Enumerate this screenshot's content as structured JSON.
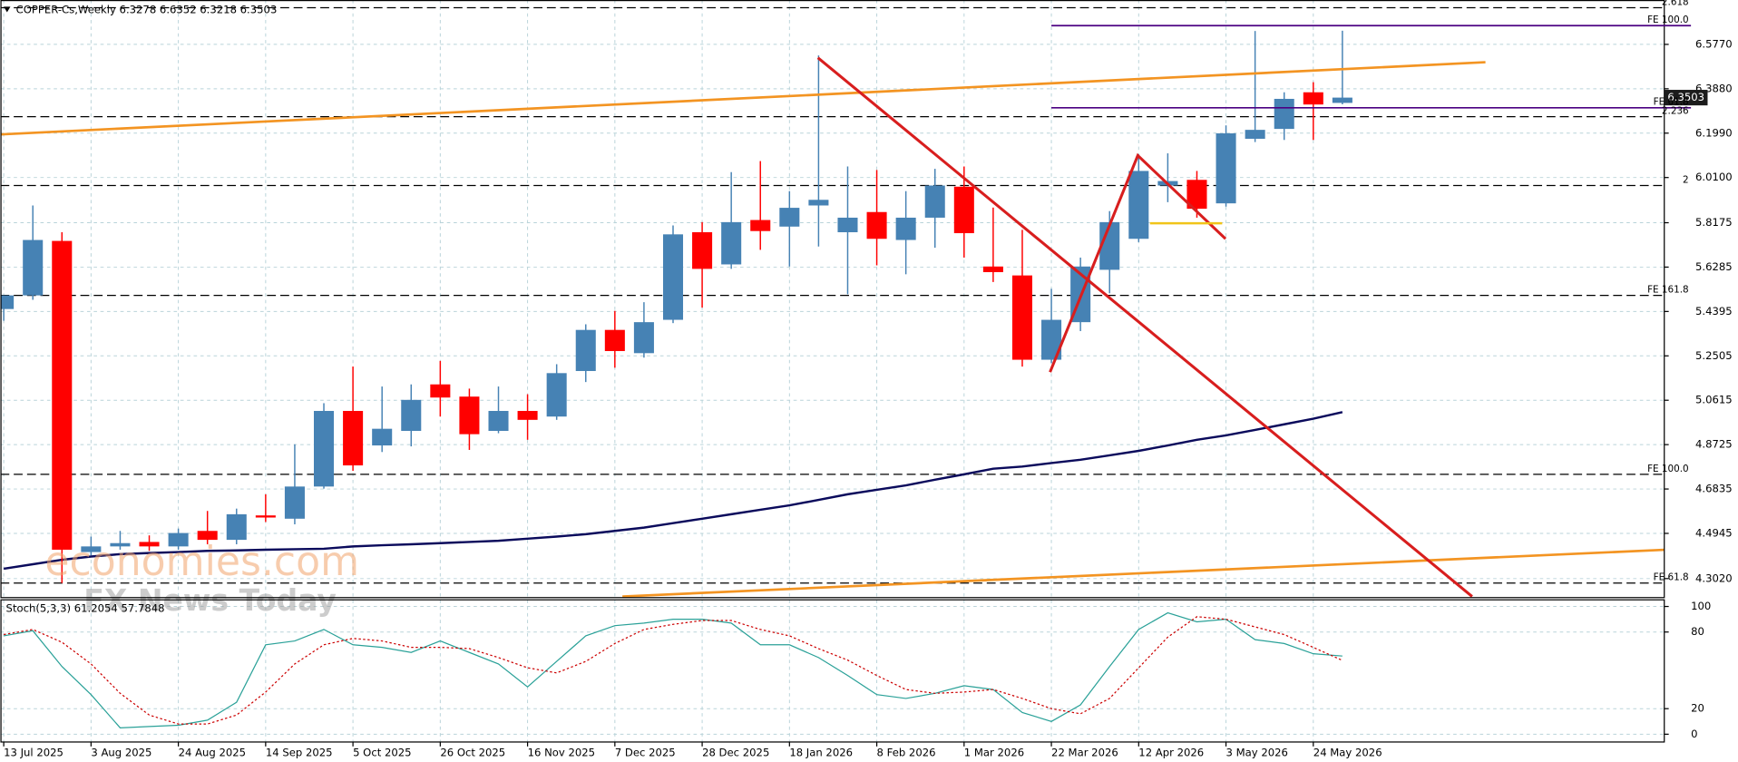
{
  "header": "COPPER-Cs,Weekly  6.3278 6.6352 6.3218 6.3503",
  "watermark": [
    "economies.com",
    "FX News Today"
  ],
  "chart_data": [
    {
      "type": "candlestick",
      "categories": [
        "13 Jul 2025",
        null,
        null,
        "3 Aug 2025",
        null,
        null,
        "24 Aug 2025",
        null,
        null,
        "14 Sep 2025",
        null,
        null,
        "5 Oct 2025",
        null,
        null,
        "26 Oct 2025",
        null,
        null,
        "16 Nov 2025",
        null,
        null,
        "7 Dec 2025",
        null,
        null,
        "28 Dec 2025",
        null,
        null,
        "18 Jan 2026",
        null,
        null,
        "8 Feb 2026",
        null,
        null,
        "1 Mar 2026",
        null,
        null,
        "22 Mar 2026",
        null,
        null,
        "12 Apr 2026",
        null,
        null,
        "3 May 2026",
        null,
        null,
        "24 May 2026",
        null
      ],
      "open": [
        5.45,
        5.508,
        5.74,
        4.415,
        4.439,
        4.458,
        4.439,
        4.505,
        4.467,
        4.571,
        4.557,
        4.694,
        5.016,
        4.869,
        4.931,
        5.129,
        5.077,
        4.931,
        5.016,
        4.992,
        5.186,
        5.361,
        5.262,
        5.404,
        5.777,
        5.64,
        5.829,
        5.801,
        5.891,
        5.777,
        5.863,
        5.744,
        5.839,
        5.971,
        5.631,
        5.593,
        5.234,
        5.394,
        5.617,
        5.749,
        5.976,
        6.0,
        5.9,
        6.175,
        6.217,
        6.373,
        6.3278
      ],
      "high": [
        5.508,
        5.891,
        5.777,
        4.481,
        4.505,
        4.486,
        4.515,
        4.59,
        4.6,
        4.661,
        4.874,
        5.049,
        5.205,
        5.12,
        5.129,
        5.229,
        5.111,
        5.12,
        5.087,
        5.215,
        5.385,
        5.442,
        5.479,
        5.806,
        5.82,
        6.033,
        6.08,
        5.952,
        6.53,
        6.057,
        6.042,
        5.952,
        6.047,
        6.057,
        5.882,
        5.787,
        5.536,
        5.669,
        5.867,
        6.109,
        6.113,
        6.038,
        6.232,
        6.634,
        6.373,
        6.416,
        6.6352
      ],
      "low": [
        5.4,
        5.489,
        4.283,
        4.401,
        4.425,
        4.42,
        4.425,
        4.448,
        4.448,
        4.543,
        4.533,
        4.685,
        4.761,
        4.841,
        4.865,
        4.992,
        4.85,
        4.921,
        4.893,
        4.978,
        5.139,
        5.2,
        5.243,
        5.39,
        5.456,
        5.621,
        5.702,
        5.631,
        5.716,
        5.513,
        5.636,
        5.598,
        5.711,
        5.669,
        5.565,
        5.205,
        5.219,
        5.356,
        5.517,
        5.735,
        5.905,
        5.839,
        5.886,
        6.161,
        6.17,
        6.17,
        6.3218
      ],
      "close": [
        5.508,
        5.744,
        4.425,
        4.439,
        4.453,
        4.439,
        4.496,
        4.467,
        4.576,
        4.562,
        4.694,
        5.016,
        4.784,
        4.94,
        5.063,
        5.073,
        4.917,
        5.016,
        4.978,
        5.177,
        5.361,
        5.271,
        5.394,
        5.768,
        5.621,
        5.82,
        5.782,
        5.881,
        5.915,
        5.839,
        5.749,
        5.839,
        5.976,
        5.773,
        5.607,
        5.234,
        5.404,
        5.631,
        5.82,
        6.038,
        5.995,
        5.877,
        6.198,
        6.213,
        6.345,
        6.321,
        6.3503
      ],
      "up_color": "#4682b4",
      "down_color": "#ff0000",
      "moving_average": {
        "color": "#0b0b5c",
        "values": [
          4.344,
          4.363,
          4.382,
          4.396,
          4.406,
          4.411,
          4.415,
          4.42,
          4.422,
          4.425,
          4.427,
          4.429,
          4.439,
          4.444,
          4.448,
          4.453,
          4.458,
          4.463,
          4.472,
          4.481,
          4.491,
          4.505,
          4.519,
          4.538,
          4.557,
          4.576,
          4.595,
          4.614,
          4.637,
          4.661,
          4.68,
          4.699,
          4.723,
          4.746,
          4.77,
          4.779,
          4.794,
          4.808,
          4.827,
          4.846,
          4.869,
          4.893,
          4.912,
          4.935,
          4.959,
          4.983,
          5.011
        ]
      },
      "current_price": 6.3503,
      "levels": [
        {
          "value": 6.733,
          "label": "2.618",
          "color": "#000000",
          "style": "dashed"
        },
        {
          "value": 6.657,
          "label": "FE 100.0",
          "color": "#4b0082",
          "style": "solid",
          "from_index": 36
        },
        {
          "value": 6.307,
          "label": "FE 61.8",
          "color": "#4b0082",
          "style": "solid",
          "from_index": 36
        },
        {
          "value": 6.269,
          "label": "2.236",
          "color": "#000000",
          "style": "dashed"
        },
        {
          "value": 5.976,
          "label": "2",
          "color": "#000000",
          "style": "dashed"
        },
        {
          "value": 5.508,
          "label": "FE 161.8",
          "color": "#000000",
          "style": "dashed"
        },
        {
          "value": 4.746,
          "label": "FE 100.0",
          "color": "#000000",
          "style": "dashed"
        },
        {
          "value": 4.283,
          "label": "FE 61.8",
          "color": "#000000",
          "style": "dashed"
        }
      ],
      "ylim": [
        4.221,
        6.766
      ],
      "yticks": [
        {
          "value": 6.577,
          "label": "6.5770"
        },
        {
          "value": 6.388,
          "label": "6.3880"
        },
        {
          "value": 6.199,
          "label": "6.1990"
        },
        {
          "value": 6.01,
          "label": "6.0100"
        },
        5.8175,
        5.6285,
        5.4395,
        5.2505,
        5.0615,
        4.8725,
        4.6835,
        4.4945,
        {
          "value": 4.302,
          "label": "4.3020"
        }
      ],
      "grid": true
    },
    {
      "type": "line",
      "title": "Stoch(5,3,3) 61.2054 57.7848",
      "series": [
        {
          "color": "#2aa198",
          "style": "solid",
          "values": [
            77,
            81,
            53,
            31,
            5,
            6,
            7,
            11,
            25,
            70,
            73,
            82,
            70,
            68,
            64,
            73,
            64,
            55,
            37,
            57,
            77,
            85,
            87,
            90,
            90,
            87,
            70,
            70,
            60,
            46,
            31,
            28,
            32,
            38,
            35,
            17,
            10,
            23,
            53,
            82,
            95,
            88,
            90,
            74,
            71,
            63,
            61.2054
          ]
        },
        {
          "color": "#cc0000",
          "style": "dotted",
          "values": [
            78,
            82,
            72,
            55,
            32,
            15,
            8,
            8,
            15,
            33,
            55,
            70,
            75,
            73,
            68,
            68,
            67,
            60,
            52,
            48,
            57,
            71,
            82,
            86,
            89,
            89,
            82,
            77,
            67,
            58,
            46,
            35,
            32,
            33,
            35,
            28,
            20,
            16,
            28,
            52,
            76,
            92,
            90,
            84,
            78,
            68,
            57.7848
          ]
        }
      ],
      "ylim": [
        -6.1,
        105.2
      ],
      "yticks": [
        0,
        20,
        80,
        100
      ]
    }
  ]
}
